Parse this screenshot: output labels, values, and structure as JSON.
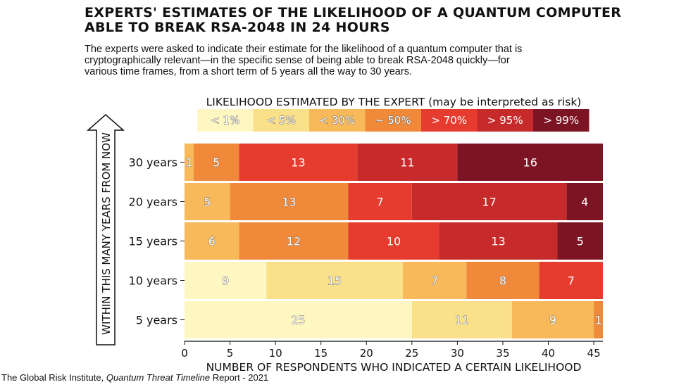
{
  "header": {
    "title_line1": "EXPERTS' ESTIMATES OF THE LIKELIHOOD OF A QUANTUM COMPUTER",
    "title_line2": "ABLE TO BREAK RSA-2048 IN 24 HOURS",
    "subtitle_line1": "The experts were asked to indicate their estimate for the likelihood of a quantum computer that is",
    "subtitle_line2": "cryptographically relevant—in the specific sense of being able to break RSA-2048 quickly—for",
    "subtitle_line3": "various time frames, from a short term of 5 years all the way to 30 years."
  },
  "footer": {
    "source_prefix": "The Global Risk Institute, ",
    "source_title": "Quantum Threat Timeline",
    "source_suffix": " Report - 2021"
  },
  "chart_data": {
    "type": "bar",
    "orientation": "horizontal",
    "stacked": true,
    "categories": [
      "30 years",
      "20 years",
      "15 years",
      "10 years",
      "5 years"
    ],
    "series": [
      {
        "name": "< 1%",
        "color": "#fff7c2",
        "values": [
          0,
          0,
          0,
          9,
          25
        ]
      },
      {
        "name": "< 5%",
        "color": "#fbe08a",
        "values": [
          0,
          0,
          0,
          15,
          11
        ]
      },
      {
        "name": "< 30%",
        "color": "#f7b95a",
        "values": [
          1,
          5,
          6,
          7,
          9
        ]
      },
      {
        "name": "~ 50%",
        "color": "#f08a3a",
        "values": [
          5,
          13,
          12,
          8,
          1
        ]
      },
      {
        "name": "> 70%",
        "color": "#e63c30",
        "values": [
          13,
          7,
          10,
          7,
          0
        ]
      },
      {
        "name": "> 95%",
        "color": "#c62a2a",
        "values": [
          11,
          17,
          13,
          0,
          0
        ]
      },
      {
        "name": "> 99%",
        "color": "#7c1424",
        "values": [
          16,
          4,
          5,
          0,
          0
        ]
      }
    ],
    "legend_title": "LIKELIHOOD ESTIMATED BY THE EXPERT (may be interpreted as risk)",
    "legend_position": "top",
    "xlabel": "NUMBER OF RESPONDENTS WHO INDICATED A CERTAIN LIKELIHOOD",
    "ylabel": "WITHIN THIS MANY YEARS FROM NOW",
    "xlim": [
      0,
      46
    ],
    "xticks": [
      0,
      5,
      10,
      15,
      20,
      25,
      30,
      35,
      40,
      45
    ],
    "grid": false
  }
}
